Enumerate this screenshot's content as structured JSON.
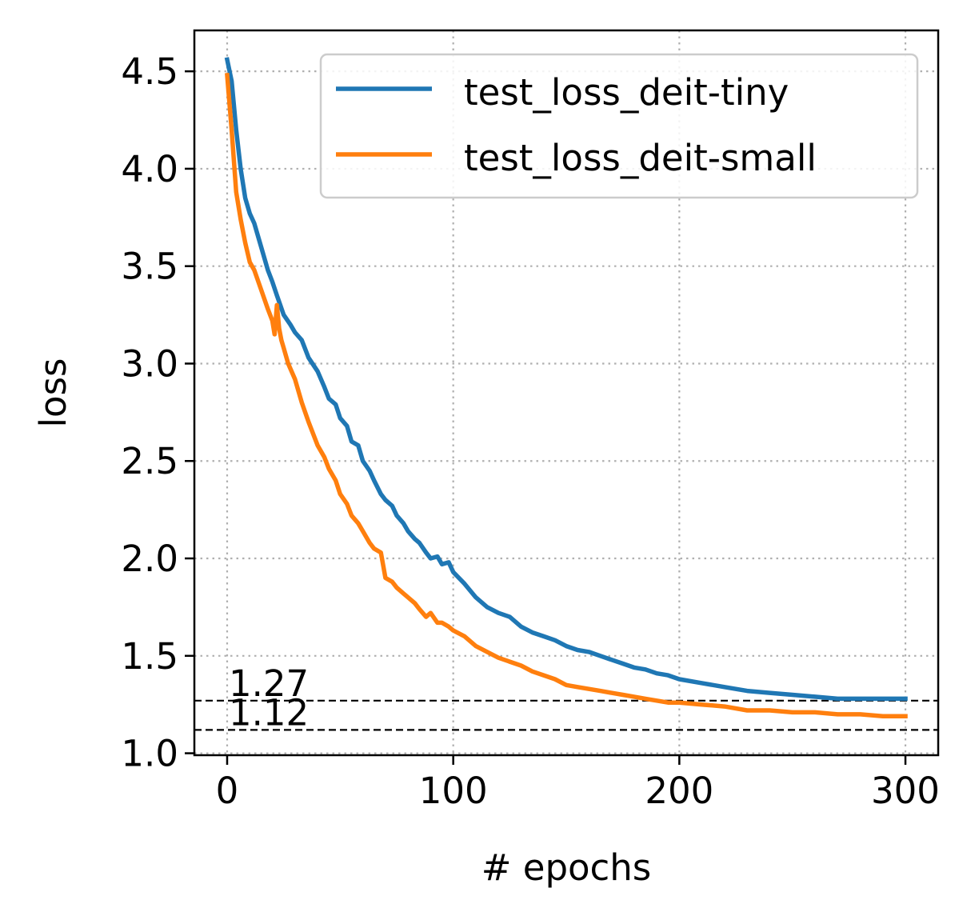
{
  "chart_data": {
    "type": "line",
    "title": "",
    "xlabel": "# epochs",
    "ylabel": "loss",
    "xlim": [
      -14.5,
      314.5
    ],
    "ylim": [
      0.99,
      4.71
    ],
    "xticks": [
      "0",
      "100",
      "200",
      "300"
    ],
    "yticks": [
      "1.0",
      "1.5",
      "2.0",
      "2.5",
      "3.0",
      "3.5",
      "4.0",
      "4.5"
    ],
    "grid": true,
    "grid_style": "dotted",
    "legend_position": "top-right",
    "series": [
      {
        "name": "test_loss_deit-tiny",
        "color": "#1f77b4",
        "x": [
          0,
          2,
          4,
          6,
          8,
          10,
          12,
          15,
          18,
          20,
          22,
          25,
          28,
          30,
          33,
          36,
          40,
          43,
          45,
          48,
          50,
          53,
          55,
          58,
          60,
          63,
          65,
          68,
          70,
          73,
          75,
          78,
          80,
          83,
          85,
          88,
          90,
          93,
          95,
          98,
          100,
          105,
          110,
          115,
          120,
          125,
          130,
          135,
          140,
          145,
          150,
          155,
          160,
          165,
          170,
          175,
          180,
          185,
          190,
          195,
          200,
          210,
          220,
          230,
          240,
          250,
          260,
          270,
          280,
          290,
          300
        ],
        "y": [
          4.56,
          4.45,
          4.2,
          4.0,
          3.85,
          3.77,
          3.72,
          3.6,
          3.48,
          3.42,
          3.35,
          3.25,
          3.2,
          3.16,
          3.12,
          3.03,
          2.96,
          2.88,
          2.82,
          2.79,
          2.72,
          2.68,
          2.6,
          2.58,
          2.5,
          2.45,
          2.4,
          2.33,
          2.3,
          2.27,
          2.22,
          2.18,
          2.14,
          2.1,
          2.08,
          2.03,
          2.0,
          2.01,
          1.97,
          1.98,
          1.93,
          1.87,
          1.8,
          1.75,
          1.72,
          1.7,
          1.65,
          1.62,
          1.6,
          1.58,
          1.55,
          1.53,
          1.52,
          1.5,
          1.48,
          1.46,
          1.44,
          1.43,
          1.41,
          1.4,
          1.38,
          1.36,
          1.34,
          1.32,
          1.31,
          1.3,
          1.29,
          1.28,
          1.28,
          1.28,
          1.28
        ]
      },
      {
        "name": "test_loss_deit-small",
        "color": "#ff7f0e",
        "x": [
          0,
          2,
          4,
          6,
          8,
          10,
          12,
          15,
          18,
          20,
          21,
          22,
          23,
          24,
          25,
          27,
          30,
          33,
          36,
          40,
          43,
          45,
          48,
          50,
          53,
          55,
          58,
          60,
          63,
          65,
          68,
          70,
          73,
          75,
          78,
          80,
          83,
          85,
          88,
          90,
          93,
          95,
          98,
          100,
          105,
          110,
          115,
          120,
          125,
          130,
          135,
          140,
          145,
          150,
          155,
          160,
          165,
          170,
          175,
          180,
          185,
          190,
          195,
          200,
          210,
          220,
          230,
          240,
          250,
          260,
          270,
          280,
          290,
          300
        ],
        "y": [
          4.48,
          4.2,
          3.88,
          3.74,
          3.62,
          3.52,
          3.48,
          3.38,
          3.28,
          3.22,
          3.15,
          3.3,
          3.18,
          3.12,
          3.08,
          3.0,
          2.92,
          2.8,
          2.7,
          2.58,
          2.52,
          2.46,
          2.4,
          2.33,
          2.28,
          2.22,
          2.18,
          2.14,
          2.08,
          2.05,
          2.03,
          1.9,
          1.88,
          1.85,
          1.82,
          1.8,
          1.77,
          1.74,
          1.7,
          1.72,
          1.67,
          1.67,
          1.65,
          1.63,
          1.6,
          1.55,
          1.52,
          1.49,
          1.47,
          1.45,
          1.42,
          1.4,
          1.38,
          1.35,
          1.34,
          1.33,
          1.32,
          1.31,
          1.3,
          1.29,
          1.28,
          1.27,
          1.26,
          1.26,
          1.25,
          1.24,
          1.22,
          1.22,
          1.21,
          1.21,
          1.2,
          1.2,
          1.19,
          1.19
        ]
      }
    ],
    "reference_lines": [
      {
        "y": 1.27,
        "label": "1.27",
        "style": "dashed",
        "color": "#000000"
      },
      {
        "y": 1.12,
        "label": "1.12",
        "style": "dashed",
        "color": "#000000"
      }
    ]
  }
}
